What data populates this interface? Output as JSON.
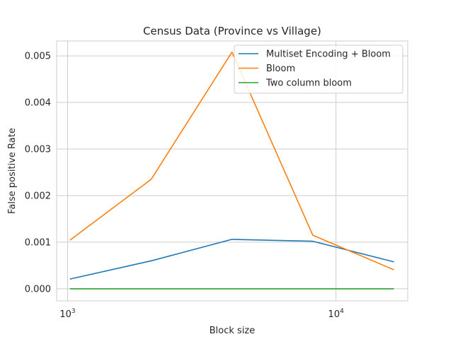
{
  "chart_data": {
    "type": "line",
    "title": "Census Data (Province vs Village)",
    "xlabel": "Block size",
    "ylabel": "False positive Rate",
    "x_scale": "log",
    "x": [
      1024,
      2048,
      4096,
      8192,
      16384
    ],
    "xlim": [
      910,
      18500
    ],
    "ylim": [
      -0.00026,
      0.00532
    ],
    "xticks": [
      {
        "value": 1000,
        "base": "10",
        "exp": "3"
      },
      {
        "value": 10000,
        "base": "10",
        "exp": "4"
      }
    ],
    "yticks": [
      {
        "value": 0.0,
        "label": "0.000"
      },
      {
        "value": 0.001,
        "label": "0.001"
      },
      {
        "value": 0.002,
        "label": "0.002"
      },
      {
        "value": 0.003,
        "label": "0.003"
      },
      {
        "value": 0.004,
        "label": "0.004"
      },
      {
        "value": 0.005,
        "label": "0.005"
      }
    ],
    "grid": true,
    "legend_position": "top-right",
    "series": [
      {
        "name": "Multiset Encoding + Bloom",
        "color": "#1f77b4",
        "values": [
          0.00021,
          0.0006,
          0.00106,
          0.00102,
          0.00058
        ]
      },
      {
        "name": "Bloom",
        "color": "#ff7f0e",
        "values": [
          0.00105,
          0.00235,
          0.00508,
          0.00115,
          0.00041
        ]
      },
      {
        "name": "Two column bloom",
        "color": "#2ca02c",
        "values": [
          0.0,
          0.0,
          0.0,
          0.0,
          0.0
        ]
      }
    ]
  }
}
